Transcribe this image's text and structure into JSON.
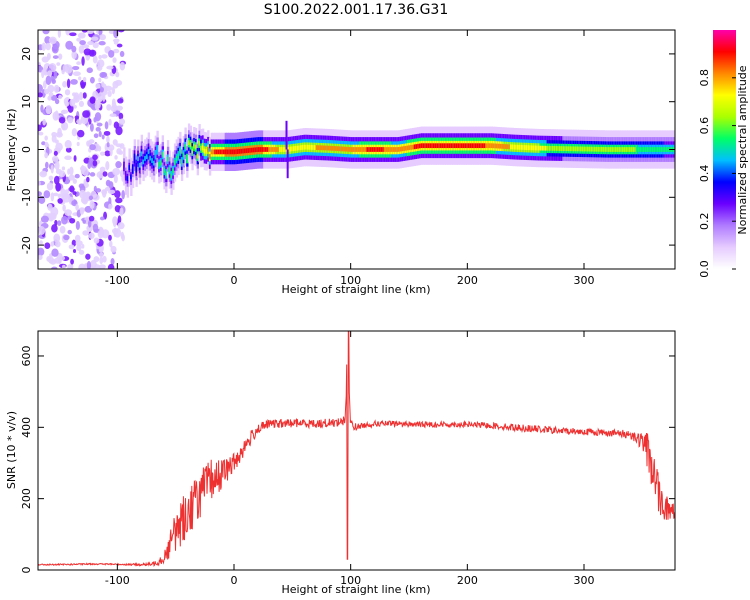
{
  "figure": {
    "title": "S100.2022.001.17.36.G31"
  },
  "colors": {
    "snr_line": "#ee3030",
    "colormap": [
      "#ffffff",
      "#e6ccff",
      "#b07cff",
      "#6a00ff",
      "#0000ff",
      "#00bfff",
      "#00ff66",
      "#aaff00",
      "#ffff00",
      "#ff8800",
      "#ff0000",
      "#ff00aa"
    ]
  },
  "chart_data": [
    {
      "type": "heatmap",
      "title": "",
      "xlabel": "Height of straight line (km)",
      "ylabel": "Frequency (Hz)",
      "xlim": [
        -168,
        378
      ],
      "ylim": [
        -25,
        25
      ],
      "x_ticks": [
        -100,
        0,
        100,
        200,
        300
      ],
      "y_ticks": [
        -20,
        -10,
        0,
        10,
        20
      ],
      "grid": false,
      "noise_region_x": [
        -168,
        -95
      ],
      "ridge": {
        "x": [
          -95,
          -85,
          -75,
          -65,
          -55,
          -45,
          -40,
          -35,
          -30,
          -20,
          0,
          20,
          45,
          60,
          80,
          100,
          120,
          140,
          160,
          180,
          200,
          220,
          240,
          260,
          280,
          300,
          320,
          340,
          360,
          378
        ],
        "freq": [
          -5,
          -3,
          -1,
          -2,
          -4,
          -1,
          0,
          -1,
          -0.5,
          -0.5,
          -0.5,
          0,
          0,
          0.5,
          0.3,
          0,
          0,
          0,
          0.8,
          0.8,
          0.8,
          0.8,
          0.5,
          0.3,
          0.2,
          0.1,
          0,
          0,
          0,
          0
        ],
        "amplitude": [
          0.3,
          0.4,
          0.45,
          0.5,
          0.5,
          0.55,
          0.6,
          0.6,
          0.65,
          0.85,
          0.95,
          0.95,
          0.7,
          0.75,
          0.8,
          0.8,
          0.9,
          0.8,
          0.9,
          0.9,
          0.9,
          0.85,
          0.75,
          0.7,
          0.65,
          0.6,
          0.6,
          0.6,
          0.55,
          0.5
        ]
      },
      "colorbar": {
        "label": "Normalized spectral amplitude",
        "range": [
          0,
          1
        ],
        "ticks": [
          "0.0",
          "0.2",
          "0.4",
          "0.6",
          "0.8"
        ]
      }
    },
    {
      "type": "line",
      "title": "",
      "xlabel": "Height of straight line (km)",
      "ylabel": "SNR (10 * v/v)",
      "xlim": [
        -168,
        378
      ],
      "ylim": [
        0,
        670
      ],
      "x_ticks": [
        -100,
        0,
        100,
        200,
        300
      ],
      "y_ticks": [
        0,
        200,
        400,
        600
      ],
      "grid": false,
      "series": [
        {
          "x": [
            -168,
            -150,
            -120,
            -100,
            -80,
            -70,
            -60,
            -50,
            -40,
            -30,
            -20,
            -10,
            0,
            10,
            20,
            30,
            40,
            50,
            60,
            70,
            80,
            90,
            95,
            98,
            100,
            105,
            110,
            120,
            140,
            160,
            180,
            200,
            220,
            240,
            260,
            280,
            300,
            320,
            340,
            350,
            355,
            360,
            365,
            370,
            378
          ],
          "y": [
            15,
            15,
            17,
            16,
            15,
            16,
            35,
            110,
            160,
            210,
            250,
            270,
            300,
            350,
            395,
            410,
            410,
            412,
            412,
            410,
            412,
            415,
            420,
            600,
            410,
            400,
            405,
            410,
            410,
            408,
            408,
            408,
            405,
            400,
            395,
            390,
            388,
            385,
            380,
            360,
            330,
            270,
            200,
            175,
            160
          ],
          "noise": [
            2,
            2,
            2,
            2,
            3,
            5,
            20,
            60,
            70,
            70,
            60,
            40,
            30,
            25,
            15,
            12,
            12,
            12,
            12,
            12,
            12,
            12,
            25,
            180,
            15,
            10,
            8,
            8,
            8,
            8,
            8,
            8,
            8,
            10,
            10,
            10,
            10,
            10,
            12,
            25,
            60,
            60,
            50,
            40,
            30
          ]
        }
      ]
    }
  ]
}
